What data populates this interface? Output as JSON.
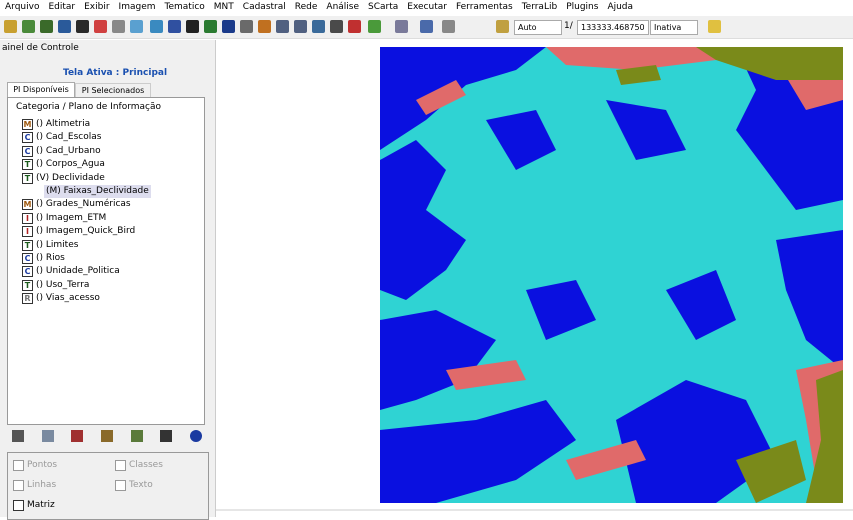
{
  "menu": [
    "Arquivo",
    "Editar",
    "Exibir",
    "Imagem",
    "Tematico",
    "MNT",
    "Cadastral",
    "Rede",
    "Análise",
    "SCarta",
    "Executar",
    "Ferramentas",
    "TerraLib",
    "Plugins",
    "Ajuda"
  ],
  "toolbar": {
    "scale_mode": "Auto",
    "scale_prefix": "1/",
    "scale_value": "133333.468750",
    "state": "Inativa"
  },
  "panel": {
    "title": "ainel de Controle",
    "active_screen": "Tela Ativa : Principal",
    "tabs": [
      "PI Disponíveis",
      "PI Selecionados"
    ],
    "tree_header": "Categoria / Plano de Informação",
    "items": [
      {
        "icon": "M",
        "label": "() Altimetria"
      },
      {
        "icon": "C",
        "label": "() Cad_Escolas"
      },
      {
        "icon": "C",
        "label": "() Cad_Urbano"
      },
      {
        "icon": "T",
        "label": "() Corpos_Agua"
      },
      {
        "icon": "T",
        "label": "(V) Declividade"
      },
      {
        "icon": "M",
        "label": "() Grades_Numéricas"
      },
      {
        "icon": "I",
        "label": "() Imagem_ETM"
      },
      {
        "icon": "I",
        "label": "() Imagem_Quick_Bird"
      },
      {
        "icon": "T",
        "label": "() Limites"
      },
      {
        "icon": "C",
        "label": "() Rios"
      },
      {
        "icon": "C",
        "label": "() Unidade_Politica"
      },
      {
        "icon": "T",
        "label": "() Uso_Terra"
      },
      {
        "icon": "R",
        "label": "() Vias_acesso"
      }
    ],
    "subitem": "(M) Faixas_Declividade",
    "options": [
      "Pontos",
      "Classes",
      "Linhas",
      "Texto",
      "Matriz"
    ]
  }
}
